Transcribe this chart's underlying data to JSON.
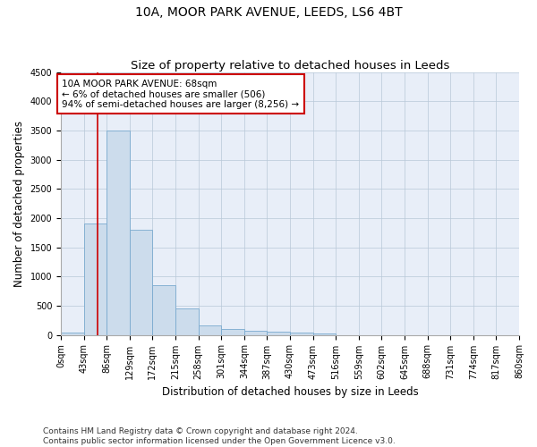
{
  "title": "10A, MOOR PARK AVENUE, LEEDS, LS6 4BT",
  "subtitle": "Size of property relative to detached houses in Leeds",
  "xlabel": "Distribution of detached houses by size in Leeds",
  "ylabel": "Number of detached properties",
  "bar_color": "#ccdcec",
  "bar_edge_color": "#7aaacf",
  "background_color": "#e8eef8",
  "grid_color": "#b8c8d8",
  "annotation_line_color": "#cc0000",
  "annotation_box_color": "#cc0000",
  "annotation_line1": "10A MOOR PARK AVENUE: 68sqm",
  "annotation_line2": "← 6% of detached houses are smaller (506)",
  "annotation_line3": "94% of semi-detached houses are larger (8,256) →",
  "property_size": 68,
  "bin_width": 43,
  "bins": [
    0,
    43,
    86,
    129,
    172,
    215,
    258,
    301,
    344,
    387,
    430,
    473,
    516,
    559,
    602,
    645,
    688,
    731,
    774,
    817,
    860
  ],
  "bar_heights": [
    40,
    1900,
    3500,
    1800,
    850,
    450,
    165,
    100,
    75,
    55,
    40,
    30,
    0,
    0,
    0,
    0,
    0,
    0,
    0,
    0
  ],
  "ylim": [
    0,
    4500
  ],
  "yticks": [
    0,
    500,
    1000,
    1500,
    2000,
    2500,
    3000,
    3500,
    4000,
    4500
  ],
  "footer_text": "Contains HM Land Registry data © Crown copyright and database right 2024.\nContains public sector information licensed under the Open Government Licence v3.0.",
  "title_fontsize": 10,
  "subtitle_fontsize": 9.5,
  "label_fontsize": 8.5,
  "tick_fontsize": 7,
  "footer_fontsize": 6.5
}
